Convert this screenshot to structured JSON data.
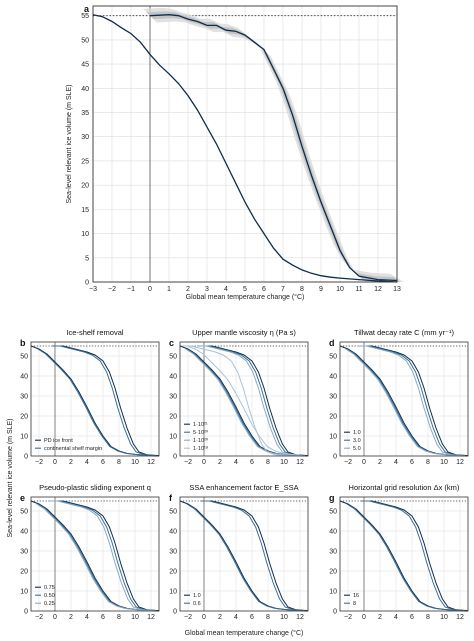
{
  "colors": {
    "dark": "#0d2c4d",
    "mid": "#3b6e96",
    "light": "#87aac5",
    "band": "#cfcfcf",
    "grid": "#dddddd"
  },
  "main_panel": {
    "letter": "a",
    "ylabel": "Sea-level relevant ice volume (m SLE)",
    "xlabel": "Global mean temperature change (°C)"
  },
  "bottom_xlabel": "Global mean temperature change (°C)",
  "bottom_ylabel": "Sea-level relevant ice volume (m SLE)",
  "chart_data": [
    {
      "panel": "a",
      "type": "line",
      "xlim": [
        -3,
        13
      ],
      "ylim": [
        0,
        57
      ],
      "xticks": [
        -3,
        -2,
        -1,
        0,
        1,
        2,
        3,
        4,
        5,
        6,
        7,
        8,
        9,
        10,
        11,
        12,
        13
      ],
      "yticks": [
        0,
        5,
        10,
        15,
        20,
        25,
        30,
        35,
        40,
        45,
        50,
        55
      ],
      "reference_line": 55,
      "grid": true,
      "series": [
        {
          "x": [
            0.0,
            0.5,
            1,
            1.5,
            2,
            2.5,
            3,
            3.5,
            4,
            4.5,
            5,
            5.5,
            6,
            6.5,
            7,
            7.5,
            8,
            8.5,
            9,
            9.5,
            10,
            10.5,
            11,
            12,
            13
          ],
          "y": [
            55.0,
            55.1,
            55.2,
            55.0,
            54.3,
            53.8,
            53.0,
            53.0,
            52.0,
            51.8,
            51.0,
            49.5,
            48.0,
            44.0,
            40.0,
            34.5,
            28.0,
            22.0,
            16.5,
            11.5,
            6.5,
            3.0,
            1.2,
            0.5,
            0.3
          ]
        },
        {
          "x": [
            -3,
            -2.5,
            -2,
            -1.5,
            -1,
            -0.5,
            0,
            0.5,
            1,
            1.5,
            2,
            2.5,
            3,
            3.5,
            4,
            4.5,
            5,
            5.5,
            6,
            6.5,
            7,
            7.5,
            8,
            8.5,
            9,
            9.5,
            10,
            11,
            12,
            13
          ],
          "y": [
            55.2,
            54.8,
            53.8,
            52.5,
            51.3,
            49.5,
            47.0,
            44.8,
            43.0,
            41.0,
            38.5,
            35.5,
            32.0,
            28.5,
            24.5,
            20.5,
            16.5,
            13.0,
            10.0,
            7.0,
            4.7,
            3.5,
            2.5,
            1.8,
            1.3,
            1.0,
            0.8,
            0.5,
            0.2,
            0.0
          ]
        }
      ]
    },
    {
      "panel": "b",
      "type": "line",
      "xlim": [
        -3,
        13
      ],
      "ylim": [
        0,
        57
      ],
      "xticks": [
        -2,
        0,
        2,
        4,
        6,
        8,
        10,
        12
      ],
      "yticks": [
        0,
        10,
        20,
        30,
        40,
        50
      ],
      "legend": [
        "PD ice front",
        "continental shelf margin"
      ]
    },
    {
      "panel": "c",
      "type": "line",
      "xlim": [
        -3,
        13
      ],
      "ylim": [
        0,
        57
      ],
      "xticks": [
        -2,
        0,
        2,
        4,
        6,
        8,
        10,
        12
      ],
      "yticks": [
        0,
        10,
        20,
        30,
        40,
        50
      ],
      "legend": [
        "1·10²¹",
        "5·10²⁰",
        "1·10²⁰",
        "1·10¹⁸"
      ]
    },
    {
      "panel": "d",
      "type": "line",
      "xlim": [
        -3,
        13
      ],
      "ylim": [
        0,
        57
      ],
      "xticks": [
        -2,
        0,
        2,
        4,
        6,
        8,
        10,
        12
      ],
      "yticks": [
        0,
        10,
        20,
        30,
        40,
        50
      ],
      "legend": [
        "1.0",
        "3.0",
        "5.0"
      ]
    },
    {
      "panel": "e",
      "type": "line",
      "xlim": [
        -3,
        13
      ],
      "ylim": [
        0,
        57
      ],
      "xticks": [
        -2,
        0,
        2,
        4,
        6,
        8,
        10,
        12
      ],
      "yticks": [
        0,
        10,
        20,
        30,
        40,
        50
      ],
      "legend": [
        "0.75",
        "0.50",
        "0.25"
      ]
    },
    {
      "panel": "f",
      "type": "line",
      "xlim": [
        -3,
        13
      ],
      "ylim": [
        0,
        57
      ],
      "xticks": [
        -2,
        0,
        2,
        4,
        6,
        8,
        10,
        12
      ],
      "yticks": [
        0,
        10,
        20,
        30,
        40,
        50
      ],
      "legend": [
        "1.0",
        "0.6"
      ]
    },
    {
      "panel": "g",
      "type": "line",
      "xlim": [
        -3,
        13
      ],
      "ylim": [
        0,
        57
      ],
      "xticks": [
        -2,
        0,
        2,
        4,
        6,
        8,
        10,
        12
      ],
      "yticks": [
        0,
        10,
        20,
        30,
        40,
        50
      ],
      "legend": [
        "16",
        "8"
      ]
    }
  ],
  "panels": [
    {
      "letter": "b",
      "title": "Ice-shelf removal"
    },
    {
      "letter": "c",
      "title": "Upper mantle viscosity η (Pa s)"
    },
    {
      "letter": "d",
      "title": "Tillwat decay rate C (mm yr⁻¹)"
    },
    {
      "letter": "e",
      "title": "Pseudo-plastic sliding exponent q"
    },
    {
      "letter": "f",
      "title": "SSA enhancement factor E_SSA"
    },
    {
      "letter": "g",
      "title": "Horizontal grid resolution Δx (km)"
    }
  ]
}
